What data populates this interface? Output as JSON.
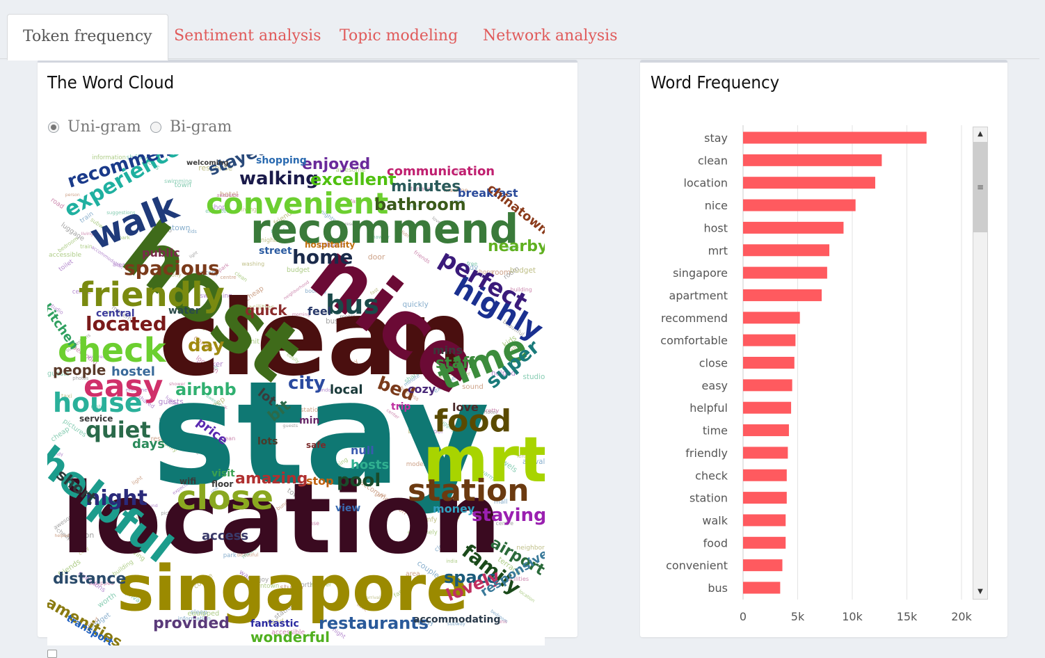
{
  "tabs": [
    {
      "label": "Token frequency",
      "active": true
    },
    {
      "label": "Sentiment analysis",
      "active": false
    },
    {
      "label": "Topic modeling",
      "active": false
    },
    {
      "label": "Network analysis",
      "active": false
    }
  ],
  "word_cloud_panel": {
    "title": "The Word Cloud",
    "ngram_options": [
      {
        "label": "Uni-gram",
        "selected": true
      },
      {
        "label": "Bi-gram",
        "selected": false
      }
    ],
    "words": [
      {
        "text": "stay",
        "color": "#0f7873"
      },
      {
        "text": "clean",
        "color": "#4a0f0f"
      },
      {
        "text": "location",
        "color": "#3a0a20"
      },
      {
        "text": "host",
        "color": "#3f6b1a"
      },
      {
        "text": "nice",
        "color": "#6b0a35"
      },
      {
        "text": "singapore",
        "color": "#9b8a00"
      },
      {
        "text": "mrt",
        "color": "#a8d400"
      },
      {
        "text": "recommend",
        "color": "#3a7a3a"
      },
      {
        "text": "friendly",
        "color": "#7a8a10"
      },
      {
        "text": "convenient",
        "color": "#6ccf30"
      },
      {
        "text": "helpful",
        "color": "#1c9c8c"
      },
      {
        "text": "check",
        "color": "#6ccf30"
      },
      {
        "text": "time",
        "color": "#3c8c3c"
      },
      {
        "text": "close",
        "color": "#8aa820"
      },
      {
        "text": "easy",
        "color": "#d0306a"
      },
      {
        "text": "food",
        "color": "#5a4a00"
      },
      {
        "text": "station",
        "color": "#6b3a10"
      },
      {
        "text": "walk",
        "color": "#1f3a7a"
      },
      {
        "text": "house",
        "color": "#2ab09a"
      },
      {
        "text": "bus",
        "color": "#1a4a4a"
      },
      {
        "text": "highly",
        "color": "#1a3090"
      },
      {
        "text": "perfect",
        "color": "#3a1a7a"
      },
      {
        "text": "experience",
        "color": "#1fb0a0"
      },
      {
        "text": "recommended",
        "color": "#1a3a8a"
      },
      {
        "text": "spacious",
        "color": "#7a3a1a"
      },
      {
        "text": "located",
        "color": "#7a1a1a"
      },
      {
        "text": "quiet",
        "color": "#2a6a4a"
      },
      {
        "text": "night",
        "color": "#2a2a7a"
      },
      {
        "text": "amazing",
        "color": "#b03030"
      },
      {
        "text": "pool",
        "color": "#1a4a2a"
      },
      {
        "text": "home",
        "color": "#1a2a4a"
      },
      {
        "text": "walking",
        "color": "#1a1a4a"
      },
      {
        "text": "excellent",
        "color": "#50c010"
      },
      {
        "text": "minutes",
        "color": "#2a5a5a"
      },
      {
        "text": "bathroom",
        "color": "#3a5a1a"
      },
      {
        "text": "enjoyed",
        "color": "#6a2a9a"
      },
      {
        "text": "stayed",
        "color": "#2a4a7a"
      },
      {
        "text": "communication",
        "color": "#c02070"
      },
      {
        "text": "breakfast",
        "color": "#2a4a9a"
      },
      {
        "text": "chinatown",
        "color": "#8a3a1a"
      },
      {
        "text": "nearby",
        "color": "#60b020"
      },
      {
        "text": "staying",
        "color": "#9a20b0"
      },
      {
        "text": "family",
        "color": "#1a4a1a"
      },
      {
        "text": "airport",
        "color": "#2a6a3a"
      },
      {
        "text": "space",
        "color": "#1a5a7a"
      },
      {
        "text": "lovely",
        "color": "#c03060"
      },
      {
        "text": "responsive",
        "color": "#3a7a9a"
      },
      {
        "text": "restaurants",
        "color": "#2a5a9a"
      },
      {
        "text": "wonderful",
        "color": "#50b020"
      },
      {
        "text": "provided",
        "color": "#5a3a7a"
      },
      {
        "text": "fantastic",
        "color": "#2a2aa0"
      },
      {
        "text": "accommodating",
        "color": "#2a3a4a"
      },
      {
        "text": "distance",
        "color": "#2a4a6a"
      },
      {
        "text": "amenities",
        "color": "#8a7a10"
      },
      {
        "text": "transport",
        "color": "#2060c0"
      },
      {
        "text": "short",
        "color": "#2a3a3a"
      },
      {
        "text": "people",
        "color": "#5a3a2a"
      },
      {
        "text": "hostel",
        "color": "#3a6a9a"
      },
      {
        "text": "airbnb",
        "color": "#30b070"
      },
      {
        "text": "city",
        "color": "#2a4aa0"
      },
      {
        "text": "bed",
        "color": "#7a3a1a"
      },
      {
        "text": "local",
        "color": "#1a3a3a"
      },
      {
        "text": "cozy",
        "color": "#4a2a7a"
      },
      {
        "text": "super",
        "color": "#1a7a7a"
      },
      {
        "text": "staff",
        "color": "#3a8a3a"
      },
      {
        "text": "mins",
        "color": "#3a3a3a"
      },
      {
        "text": "day",
        "color": "#a08a10"
      },
      {
        "text": "quick",
        "color": "#8a2a2a"
      },
      {
        "text": "feel",
        "color": "#2a3a6a"
      },
      {
        "text": "kitchen",
        "color": "#30a060"
      },
      {
        "text": "central",
        "color": "#3a3a9a"
      },
      {
        "text": "water",
        "color": "#2a4a4a"
      },
      {
        "text": "public",
        "color": "#7a2a4a"
      },
      {
        "text": "street",
        "color": "#2a5aa0"
      },
      {
        "text": "hospitality",
        "color": "#c07010"
      },
      {
        "text": "shopping",
        "color": "#2a6ab0"
      },
      {
        "text": "welcoming",
        "color": "#3a3a3a"
      },
      {
        "text": "price",
        "color": "#5a2ab0"
      },
      {
        "text": "min",
        "color": "#6a2a6a"
      },
      {
        "text": "lots",
        "color": "#4a3a2a"
      },
      {
        "text": "lot",
        "color": "#3a3a3a"
      },
      {
        "text": "bit",
        "color": "#2a6a4a"
      },
      {
        "text": "days",
        "color": "#2a8a5a"
      },
      {
        "text": "hosts",
        "color": "#30b090"
      },
      {
        "text": "null",
        "color": "#3a5ab0"
      },
      {
        "text": "visit",
        "color": "#3aa050"
      },
      {
        "text": "view",
        "color": "#3a6ab0"
      },
      {
        "text": "money",
        "color": "#30a0c0"
      },
      {
        "text": "access",
        "color": "#3a3a6a"
      },
      {
        "text": "love",
        "color": "#4a2a2a"
      },
      {
        "text": "trip",
        "color": "#c030a0"
      },
      {
        "text": "stop",
        "color": "#c06010"
      },
      {
        "text": "safe",
        "color": "#7a2a2a"
      },
      {
        "text": "floor",
        "color": "#3a3a3a"
      },
      {
        "text": "wifi",
        "color": "#3a3a3a"
      },
      {
        "text": "service",
        "color": "#3a3a3a"
      }
    ]
  },
  "word_frequency_panel": {
    "title": "Word Frequency",
    "bar_color": "#ff5a5f",
    "chart_data": {
      "type": "bar",
      "orientation": "horizontal",
      "categories": [
        "stay",
        "clean",
        "location",
        "nice",
        "host",
        "mrt",
        "singapore",
        "apartment",
        "recommend",
        "comfortable",
        "close",
        "easy",
        "helpful",
        "time",
        "friendly",
        "check",
        "station",
        "walk",
        "food",
        "convenient",
        "bus"
      ],
      "values": [
        16800,
        12700,
        12100,
        10300,
        9200,
        7900,
        7700,
        7200,
        5200,
        4800,
        4700,
        4500,
        4400,
        4200,
        4100,
        4000,
        4000,
        3900,
        3900,
        3600,
        3400
      ],
      "xlim": [
        0,
        20000
      ],
      "x_ticks": [
        "0",
        "5k",
        "10k",
        "15k",
        "20k"
      ],
      "xlabel": "",
      "ylabel": "",
      "grid": "vertical"
    }
  }
}
